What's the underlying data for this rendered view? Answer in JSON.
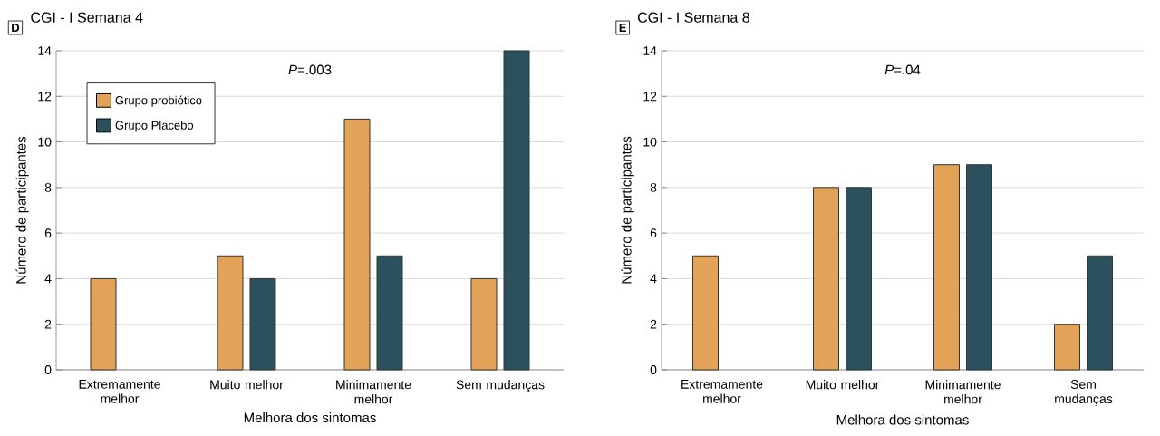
{
  "chart_data": [
    {
      "type": "bar",
      "title": "CGI - I Semana 4",
      "annotations": [
        "D",
        "*P*=.003"
      ],
      "xlabel": "Melhora dos sintomas",
      "ylabel": "Número de participantes",
      "categories": [
        "Extremamente melhor",
        "Muito melhor",
        "Minimamente melhor",
        "Sem mudanças"
      ],
      "series": [
        {
          "name": "Grupo probiótico",
          "color": "#e2a257",
          "values": [
            4,
            5,
            11,
            4
          ]
        },
        {
          "name": "Grupo Placebo",
          "color": "#2b525c",
          "values": [
            null,
            4,
            5,
            14
          ]
        }
      ],
      "ylim": [
        0,
        14
      ],
      "yticks": [
        0,
        2,
        4,
        6,
        8,
        10,
        12,
        14
      ],
      "grid": "y",
      "legend": "top left"
    },
    {
      "type": "bar",
      "title": "CGI - I Semana 8",
      "annotations": [
        "E",
        "*P*=.04"
      ],
      "xlabel": "Melhora dos sintomas",
      "ylabel": "Número de participantes",
      "categories": [
        "Extremamente melhor",
        "Muito melhor",
        "Minimamente melhor",
        "Sem mudanças"
      ],
      "series": [
        {
          "color": "#e2a257",
          "values": [
            5,
            8,
            9,
            2
          ]
        },
        {
          "color": "#2b525c",
          "values": [
            null,
            8,
            9,
            5
          ]
        }
      ],
      "ylim": [
        0,
        14
      ],
      "yticks": [
        0,
        2,
        4,
        6,
        8,
        10,
        12,
        14
      ],
      "grid": "y"
    }
  ]
}
